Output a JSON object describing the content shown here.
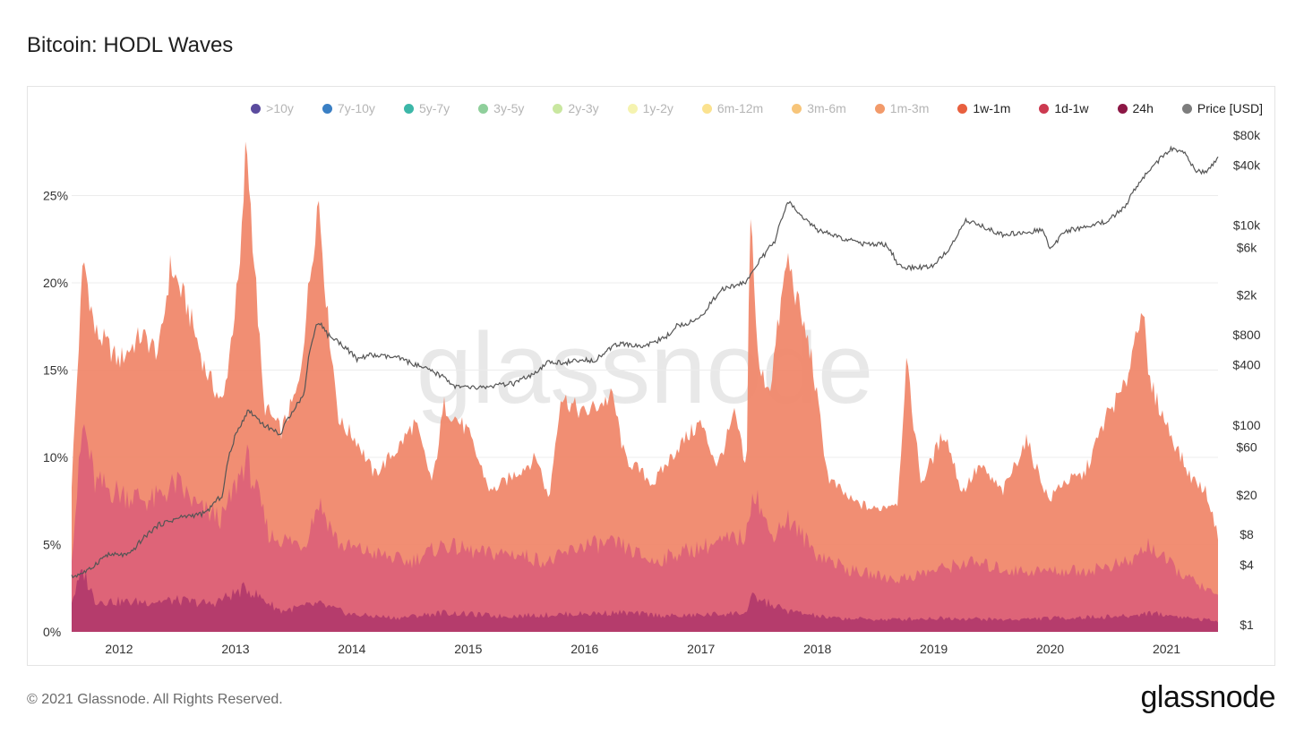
{
  "title": "Bitcoin: HODL Waves",
  "footer": "© 2021 Glassnode. All Rights Reserved.",
  "brand": "glassnode",
  "watermark": "glassnode",
  "legend": [
    {
      "label": ">10y",
      "color": "#5b4b9e",
      "active": false
    },
    {
      "label": "7y-10y",
      "color": "#3a7fc4",
      "active": false
    },
    {
      "label": "5y-7y",
      "color": "#3cb7a8",
      "active": false
    },
    {
      "label": "3y-5y",
      "color": "#8fcf9b",
      "active": false
    },
    {
      "label": "2y-3y",
      "color": "#c9e7a0",
      "active": false
    },
    {
      "label": "1y-2y",
      "color": "#f5f3b0",
      "active": false
    },
    {
      "label": "6m-12m",
      "color": "#fbe28f",
      "active": false
    },
    {
      "label": "3m-6m",
      "color": "#f7c57a",
      "active": false
    },
    {
      "label": "1m-3m",
      "color": "#f29a6a",
      "active": false
    },
    {
      "label": "1w-1m",
      "color": "#e8603f",
      "active": true
    },
    {
      "label": "1d-1w",
      "color": "#cc3a50",
      "active": true
    },
    {
      "label": "24h",
      "color": "#8c1745",
      "active": true
    },
    {
      "label": "Price [USD]",
      "color": "#7d7d7d",
      "active": true
    }
  ],
  "chart_data": {
    "type": "area",
    "stacked": true,
    "x_ticks": [
      "2012",
      "2013",
      "2014",
      "2015",
      "2016",
      "2017",
      "2018",
      "2019",
      "2020",
      "2021"
    ],
    "y_left_ticks": [
      "0%",
      "5%",
      "10%",
      "15%",
      "20%",
      "25%"
    ],
    "y_left_range": [
      0,
      28
    ],
    "y_right_ticks": [
      "$1",
      "$4",
      "$8",
      "$20",
      "$60",
      "$100",
      "$400",
      "$800",
      "$2k",
      "$6k",
      "$10k",
      "$40k",
      "$80k"
    ],
    "y_right_scale": "log",
    "x_range": [
      2011.8,
      2021.65
    ],
    "colors": {
      "1w-1m": "#f0886c",
      "1d-1w": "#dc6278",
      "24h": "#b23a6c",
      "price": "#555555"
    },
    "series": [
      {
        "name": "1w-1m",
        "x": [
          2011.8,
          2011.9,
          2012.0,
          2012.1,
          2012.2,
          2012.4,
          2012.55,
          2012.65,
          2012.8,
          2012.95,
          2013.1,
          2013.25,
          2013.3,
          2013.45,
          2013.6,
          2013.75,
          2013.92,
          2014.0,
          2014.1,
          2014.25,
          2014.4,
          2014.6,
          2014.75,
          2014.9,
          2015.0,
          2015.2,
          2015.4,
          2015.6,
          2015.8,
          2015.9,
          2016.0,
          2016.2,
          2016.45,
          2016.55,
          2016.8,
          2017.0,
          2017.2,
          2017.35,
          2017.5,
          2017.6,
          2017.63,
          2017.7,
          2017.8,
          2017.95,
          2018.05,
          2018.15,
          2018.3,
          2018.5,
          2018.7,
          2018.9,
          2018.97,
          2019.1,
          2019.3,
          2019.45,
          2019.6,
          2019.8,
          2020.0,
          2020.2,
          2020.3,
          2020.5,
          2020.7,
          2020.85,
          2021.0,
          2021.05,
          2021.2,
          2021.4,
          2021.55,
          2021.65
        ],
        "values": [
          8.5,
          21.5,
          17.2,
          16.5,
          15.5,
          17.0,
          16.0,
          21.0,
          18.5,
          15.0,
          13.0,
          21.0,
          28.3,
          13.0,
          11.5,
          14.0,
          25.0,
          18.0,
          12.0,
          11.0,
          9.0,
          10.5,
          12.0,
          8.5,
          13.0,
          11.5,
          8.0,
          9.0,
          10.0,
          7.5,
          13.5,
          12.5,
          13.5,
          10.0,
          8.5,
          10.5,
          12.0,
          9.5,
          12.5,
          9.0,
          25.0,
          15.0,
          14.0,
          21.5,
          18.5,
          16.0,
          8.8,
          7.5,
          7.0,
          7.5,
          15.5,
          8.5,
          11.5,
          8.0,
          9.5,
          8.0,
          11.0,
          7.5,
          8.5,
          9.0,
          12.5,
          14.0,
          19.0,
          14.5,
          12.0,
          9.0,
          8.0,
          5.5
        ]
      },
      {
        "name": "1d-1w",
        "x": [
          2011.8,
          2011.9,
          2012.0,
          2012.2,
          2012.5,
          2012.7,
          2012.9,
          2013.1,
          2013.3,
          2013.5,
          2013.8,
          2013.92,
          2014.1,
          2014.4,
          2014.7,
          2015.0,
          2015.3,
          2015.6,
          2015.9,
          2016.2,
          2016.5,
          2016.8,
          2017.0,
          2017.3,
          2017.6,
          2017.65,
          2017.8,
          2017.95,
          2018.2,
          2018.5,
          2018.9,
          2019.2,
          2019.5,
          2019.9,
          2020.2,
          2020.5,
          2020.9,
          2021.05,
          2021.3,
          2021.65
        ],
        "values": [
          4.5,
          12.0,
          8.5,
          8.0,
          7.5,
          8.5,
          7.0,
          6.5,
          10.0,
          5.5,
          5.0,
          7.5,
          5.0,
          4.5,
          4.0,
          5.0,
          4.5,
          4.5,
          4.0,
          5.0,
          5.0,
          4.0,
          4.5,
          5.0,
          5.5,
          8.5,
          5.5,
          6.5,
          4.5,
          3.5,
          3.0,
          3.5,
          4.0,
          3.5,
          3.5,
          3.5,
          4.0,
          5.0,
          3.5,
          2.0
        ]
      },
      {
        "name": "24h",
        "x": [
          2011.8,
          2011.9,
          2012.0,
          2012.3,
          2012.7,
          2013.0,
          2013.3,
          2013.6,
          2013.92,
          2014.2,
          2014.6,
          2015.0,
          2015.5,
          2016.0,
          2016.5,
          2017.0,
          2017.6,
          2017.65,
          2017.95,
          2018.3,
          2018.8,
          2019.3,
          2019.8,
          2020.3,
          2020.9,
          2021.05,
          2021.65
        ],
        "values": [
          1.8,
          3.5,
          1.8,
          1.7,
          1.8,
          1.6,
          2.5,
          1.2,
          1.6,
          1.0,
          0.8,
          1.1,
          0.9,
          1.0,
          1.1,
          0.9,
          1.1,
          2.0,
          1.2,
          0.8,
          0.7,
          0.8,
          0.7,
          0.8,
          0.9,
          1.1,
          0.6
        ]
      },
      {
        "name": "Price [USD]",
        "x": [
          2011.8,
          2011.95,
          2012.1,
          2012.3,
          2012.55,
          2012.75,
          2012.95,
          2013.1,
          2013.25,
          2013.32,
          2013.45,
          2013.6,
          2013.8,
          2013.92,
          2014.0,
          2014.15,
          2014.25,
          2014.35,
          2014.6,
          2014.8,
          2015.0,
          2015.1,
          2015.3,
          2015.6,
          2015.8,
          2015.9,
          2016.0,
          2016.3,
          2016.5,
          2016.7,
          2016.9,
          2017.0,
          2017.2,
          2017.4,
          2017.6,
          2017.75,
          2017.85,
          2017.96,
          2018.05,
          2018.2,
          2018.4,
          2018.6,
          2018.8,
          2018.9,
          2019.0,
          2019.2,
          2019.35,
          2019.48,
          2019.6,
          2019.8,
          2020.0,
          2020.15,
          2020.2,
          2020.35,
          2020.5,
          2020.7,
          2020.85,
          2021.0,
          2021.1,
          2021.25,
          2021.35,
          2021.45,
          2021.55,
          2021.65
        ],
        "values": [
          3,
          3.5,
          5,
          5,
          10,
          12,
          13,
          20,
          100,
          140,
          100,
          80,
          200,
          1100,
          800,
          600,
          450,
          500,
          470,
          380,
          300,
          240,
          235,
          260,
          330,
          430,
          420,
          450,
          650,
          610,
          740,
          980,
          1150,
          2300,
          2700,
          5000,
          7000,
          17000,
          13000,
          9000,
          7500,
          6500,
          6400,
          4000,
          3700,
          3900,
          5800,
          11000,
          10000,
          8000,
          8500,
          9000,
          5500,
          8800,
          9500,
          11000,
          15000,
          29000,
          40000,
          58000,
          55000,
          35000,
          33000,
          47000
        ]
      }
    ]
  }
}
